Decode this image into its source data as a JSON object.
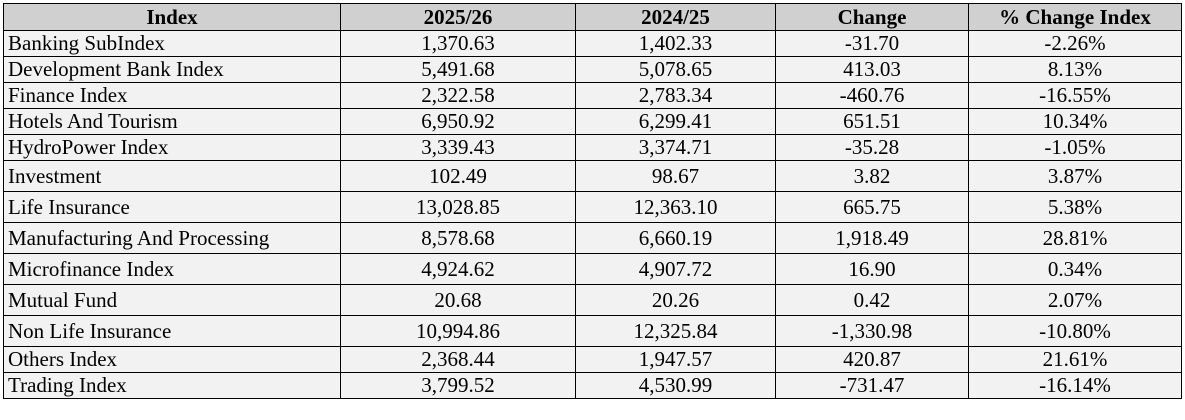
{
  "table": {
    "header": [
      "Index",
      "2025/26",
      "2024/25",
      "Change",
      "% Change Index"
    ],
    "rows": [
      [
        "Banking SubIndex",
        "1,370.63",
        "1,402.33",
        "-31.70",
        "-2.26%"
      ],
      [
        "Development Bank Index",
        "5,491.68",
        "5,078.65",
        "413.03",
        "8.13%"
      ],
      [
        "Finance Index",
        "2,322.58",
        "2,783.34",
        "-460.76",
        "-16.55%"
      ],
      [
        "Hotels And Tourism",
        "6,950.92",
        "6,299.41",
        "651.51",
        "10.34%"
      ],
      [
        "HydroPower Index",
        "3,339.43",
        "3,374.71",
        "-35.28",
        "-1.05%"
      ],
      [
        "Investment",
        "102.49",
        "98.67",
        "3.82",
        "3.87%"
      ],
      [
        "Life Insurance",
        "13,028.85",
        "12,363.10",
        "665.75",
        "5.38%"
      ],
      [
        "Manufacturing And Processing",
        "8,578.68",
        "6,660.19",
        "1,918.49",
        "28.81%"
      ],
      [
        "Microfinance Index",
        "4,924.62",
        "4,907.72",
        "16.90",
        "0.34%"
      ],
      [
        "Mutual Fund",
        "20.68",
        "20.26",
        "0.42",
        "2.07%"
      ],
      [
        "Non Life Insurance",
        "10,994.86",
        "12,325.84",
        "-1,330.98",
        "-10.80%"
      ],
      [
        "Others Index",
        "2,368.44",
        "1,947.57",
        "420.87",
        "21.61%"
      ],
      [
        "Trading Index",
        "3,799.52",
        "4,530.99",
        "-731.47",
        "-16.14%"
      ]
    ]
  }
}
